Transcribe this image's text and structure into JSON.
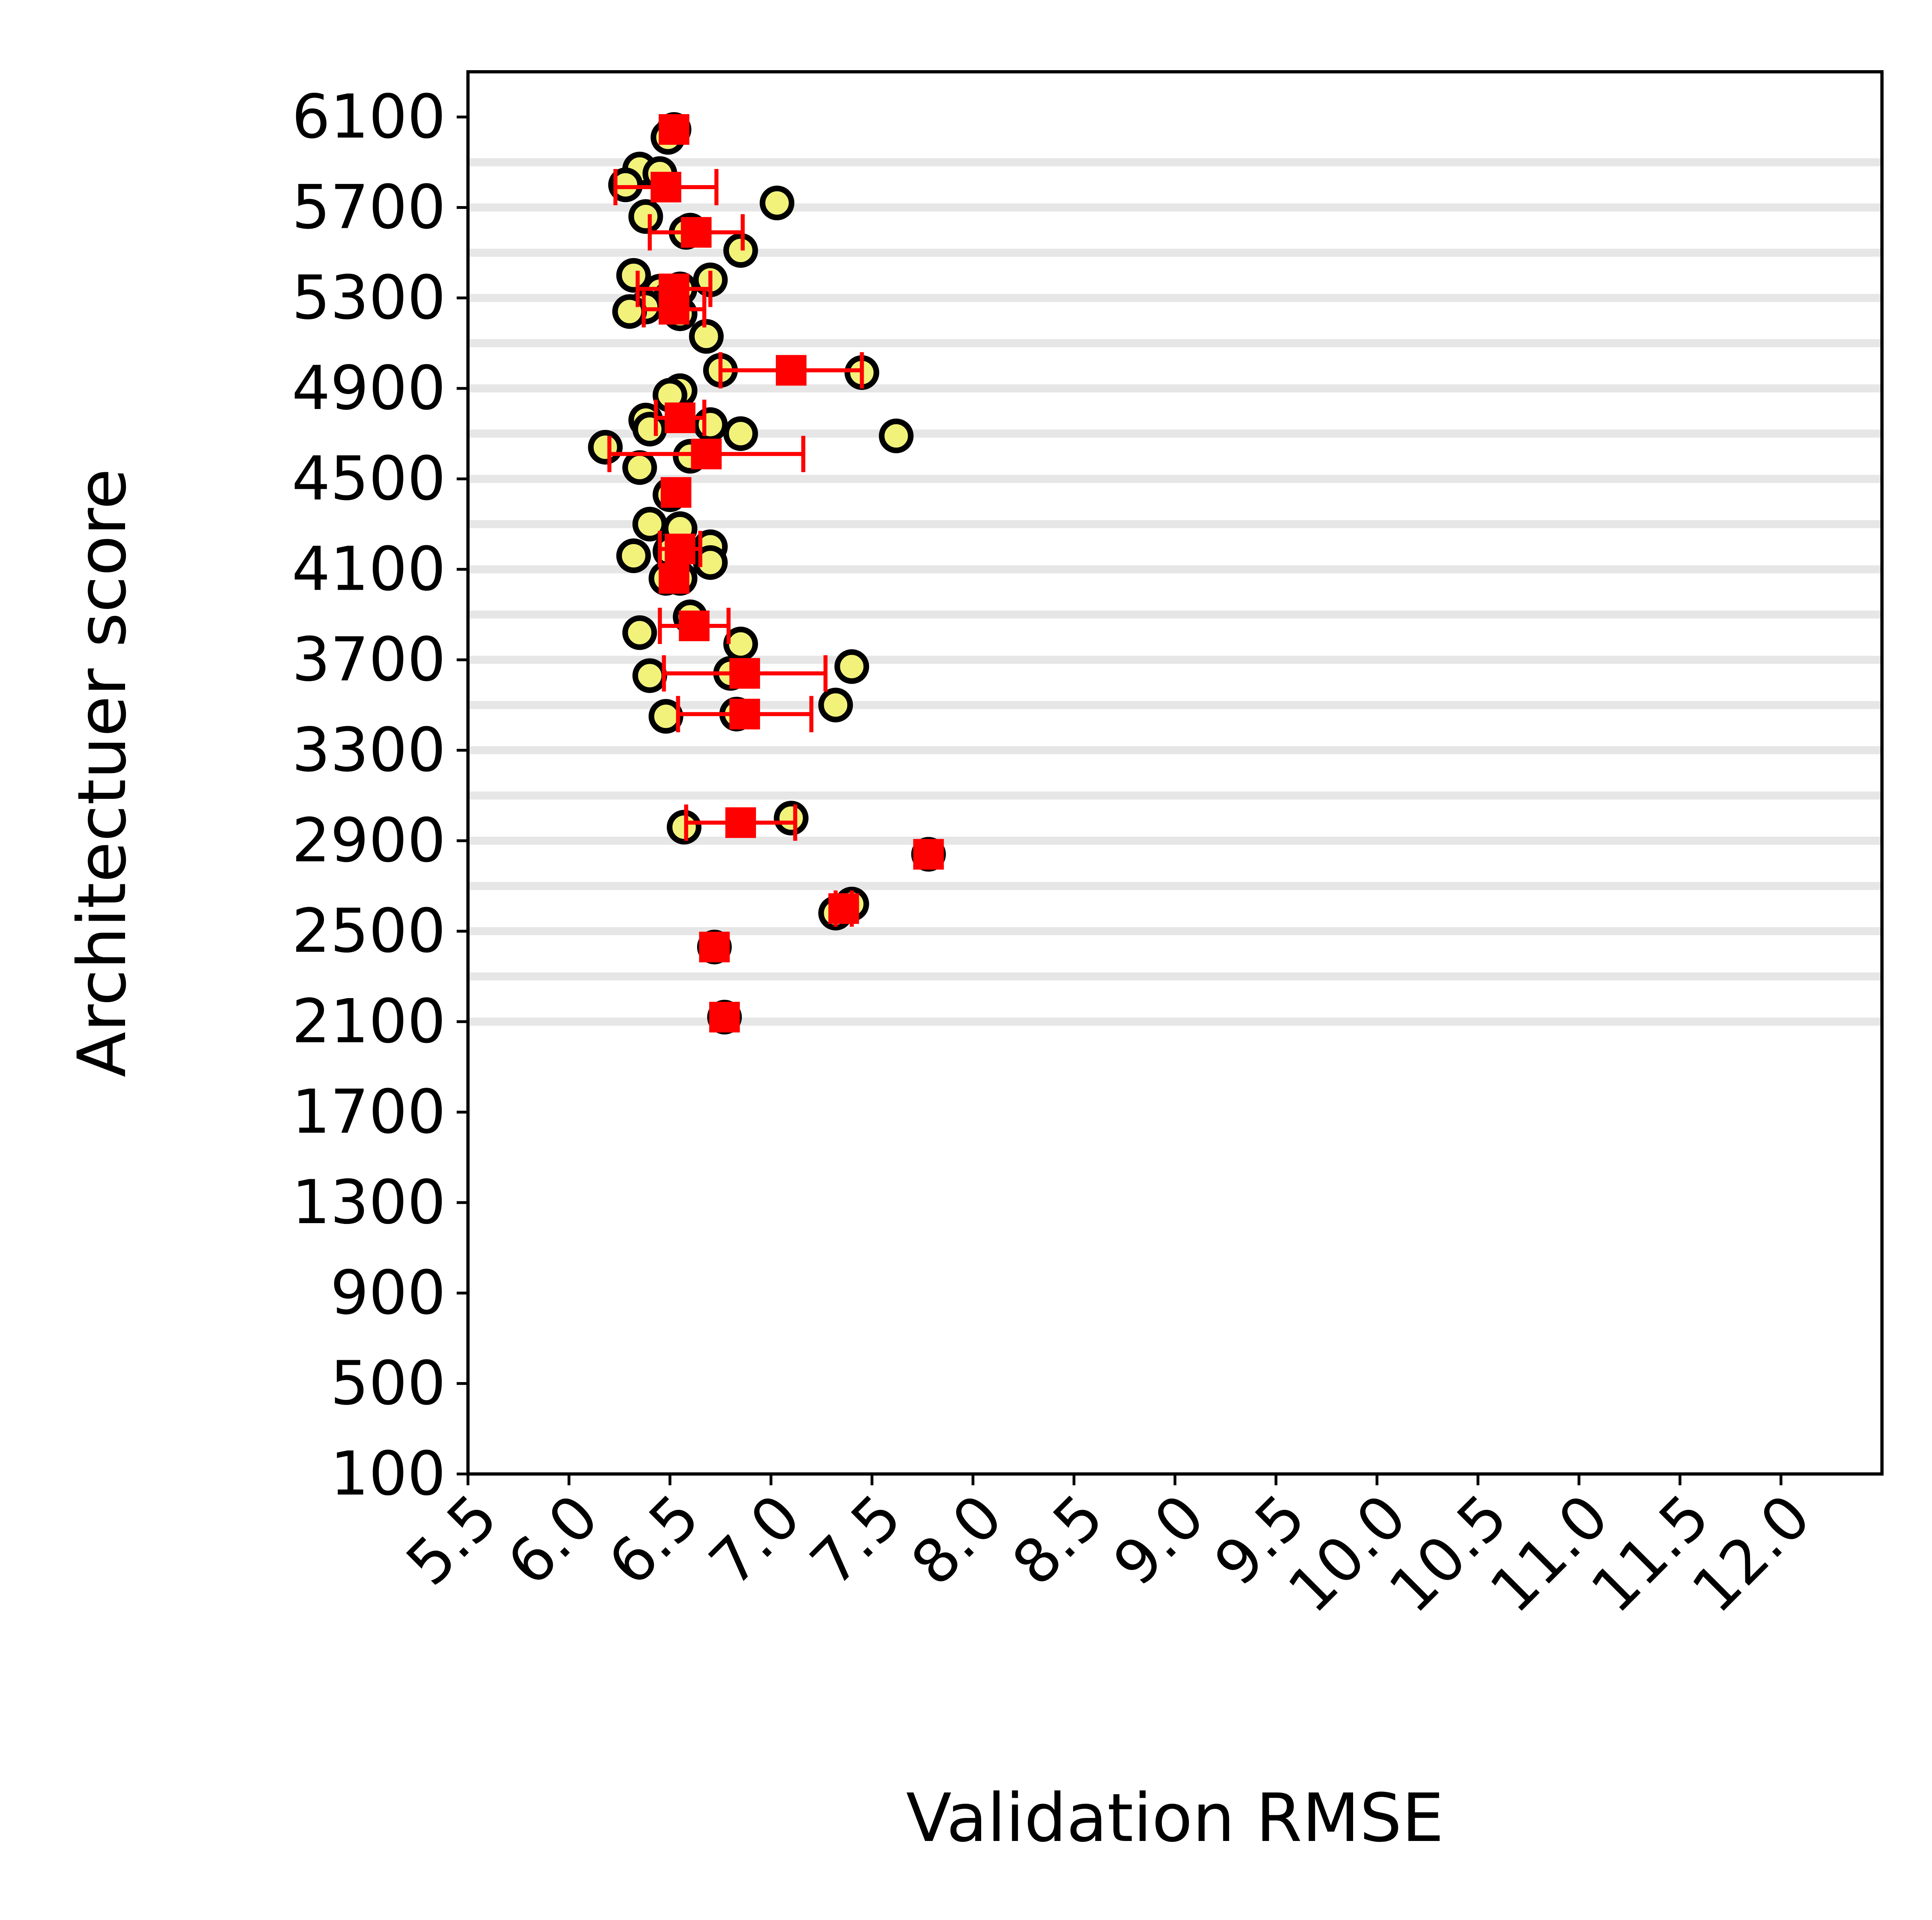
{
  "chart_data": {
    "type": "scatter",
    "title": "",
    "xlabel": "Validation RMSE",
    "ylabel": "Architectuer score",
    "xlim": [
      5.5,
      12.5
    ],
    "ylim": [
      100,
      6300
    ],
    "x_ticks": [
      "5.5",
      "6.0",
      "6.5",
      "7.0",
      "7.5",
      "8.0",
      "8.5",
      "9.0",
      "9.5",
      "10.0",
      "10.5",
      "11.0",
      "11.5",
      "12.0"
    ],
    "y_ticks": [
      "100",
      "500",
      "900",
      "1300",
      "1700",
      "2100",
      "2500",
      "2900",
      "3300",
      "3700",
      "4100",
      "4500",
      "4900",
      "5300",
      "5700",
      "6100"
    ],
    "grid": "horizontal lines at architecture score levels",
    "grid_levels": [
      2100,
      2300,
      2500,
      2700,
      2900,
      3100,
      3300,
      3500,
      3700,
      3900,
      4100,
      4300,
      4500,
      4700,
      4900,
      5100,
      5300,
      5500,
      5700,
      5900
    ],
    "colors": {
      "run_fill": "#f2f27a",
      "run_edge": "#000000",
      "mean_marker": "#ff0000",
      "grid": "#e6e6e6"
    },
    "runs": [
      {
        "x": 6.52,
        "y": 6045
      },
      {
        "x": 6.49,
        "y": 6010
      },
      {
        "x": 6.35,
        "y": 5870
      },
      {
        "x": 6.45,
        "y": 5850
      },
      {
        "x": 6.28,
        "y": 5800
      },
      {
        "x": 7.03,
        "y": 5720
      },
      {
        "x": 6.38,
        "y": 5660
      },
      {
        "x": 6.6,
        "y": 5600
      },
      {
        "x": 6.58,
        "y": 5590
      },
      {
        "x": 6.85,
        "y": 5510
      },
      {
        "x": 6.32,
        "y": 5400
      },
      {
        "x": 6.7,
        "y": 5380
      },
      {
        "x": 6.55,
        "y": 5340
      },
      {
        "x": 6.45,
        "y": 5330
      },
      {
        "x": 6.5,
        "y": 5300
      },
      {
        "x": 6.38,
        "y": 5260
      },
      {
        "x": 6.3,
        "y": 5240
      },
      {
        "x": 6.55,
        "y": 5230
      },
      {
        "x": 6.68,
        "y": 5130
      },
      {
        "x": 6.75,
        "y": 4980
      },
      {
        "x": 7.45,
        "y": 4970
      },
      {
        "x": 6.55,
        "y": 4890
      },
      {
        "x": 6.5,
        "y": 4870
      },
      {
        "x": 6.38,
        "y": 4760
      },
      {
        "x": 6.7,
        "y": 4740
      },
      {
        "x": 6.4,
        "y": 4720
      },
      {
        "x": 6.85,
        "y": 4700
      },
      {
        "x": 7.62,
        "y": 4690
      },
      {
        "x": 6.18,
        "y": 4640
      },
      {
        "x": 6.6,
        "y": 4600
      },
      {
        "x": 6.35,
        "y": 4550
      },
      {
        "x": 6.5,
        "y": 4430
      },
      {
        "x": 6.4,
        "y": 4300
      },
      {
        "x": 6.55,
        "y": 4280
      },
      {
        "x": 6.7,
        "y": 4200
      },
      {
        "x": 6.5,
        "y": 4180
      },
      {
        "x": 6.32,
        "y": 4160
      },
      {
        "x": 6.7,
        "y": 4130
      },
      {
        "x": 6.48,
        "y": 4060
      },
      {
        "x": 6.55,
        "y": 4060
      },
      {
        "x": 6.6,
        "y": 3890
      },
      {
        "x": 6.35,
        "y": 3820
      },
      {
        "x": 6.85,
        "y": 3770
      },
      {
        "x": 7.4,
        "y": 3670
      },
      {
        "x": 6.8,
        "y": 3640
      },
      {
        "x": 6.4,
        "y": 3630
      },
      {
        "x": 7.32,
        "y": 3500
      },
      {
        "x": 6.48,
        "y": 3450
      },
      {
        "x": 6.83,
        "y": 3460
      },
      {
        "x": 7.1,
        "y": 3000
      },
      {
        "x": 6.57,
        "y": 2960
      },
      {
        "x": 7.78,
        "y": 2840
      },
      {
        "x": 7.4,
        "y": 2620
      },
      {
        "x": 7.32,
        "y": 2580
      },
      {
        "x": 6.72,
        "y": 2430
      },
      {
        "x": 6.77,
        "y": 2120
      }
    ],
    "means": [
      {
        "x": 6.52,
        "y": 6045,
        "xerr": 0
      },
      {
        "x": 6.48,
        "y": 5790,
        "xerr": 0.25
      },
      {
        "x": 6.63,
        "y": 5590,
        "xerr": 0.23
      },
      {
        "x": 6.52,
        "y": 5340,
        "xerr": 0.18
      },
      {
        "x": 6.52,
        "y": 5250,
        "xerr": 0.15
      },
      {
        "x": 7.1,
        "y": 4980,
        "xerr": 0.35
      },
      {
        "x": 6.55,
        "y": 4770,
        "xerr": 0.12
      },
      {
        "x": 6.68,
        "y": 4610,
        "xerr": 0.48
      },
      {
        "x": 6.53,
        "y": 4440,
        "xerr": 0
      },
      {
        "x": 6.55,
        "y": 4190,
        "xerr": 0.1
      },
      {
        "x": 6.52,
        "y": 4060,
        "xerr": 0
      },
      {
        "x": 6.62,
        "y": 3850,
        "xerr": 0.17
      },
      {
        "x": 6.87,
        "y": 3640,
        "xerr": 0.4
      },
      {
        "x": 6.87,
        "y": 3460,
        "xerr": 0.33
      },
      {
        "x": 6.85,
        "y": 2980,
        "xerr": 0.27
      },
      {
        "x": 7.78,
        "y": 2840,
        "xerr": 0
      },
      {
        "x": 7.36,
        "y": 2600,
        "xerr": 0.04
      },
      {
        "x": 6.72,
        "y": 2430,
        "xerr": 0
      },
      {
        "x": 6.77,
        "y": 2120,
        "xerr": 0
      }
    ]
  }
}
